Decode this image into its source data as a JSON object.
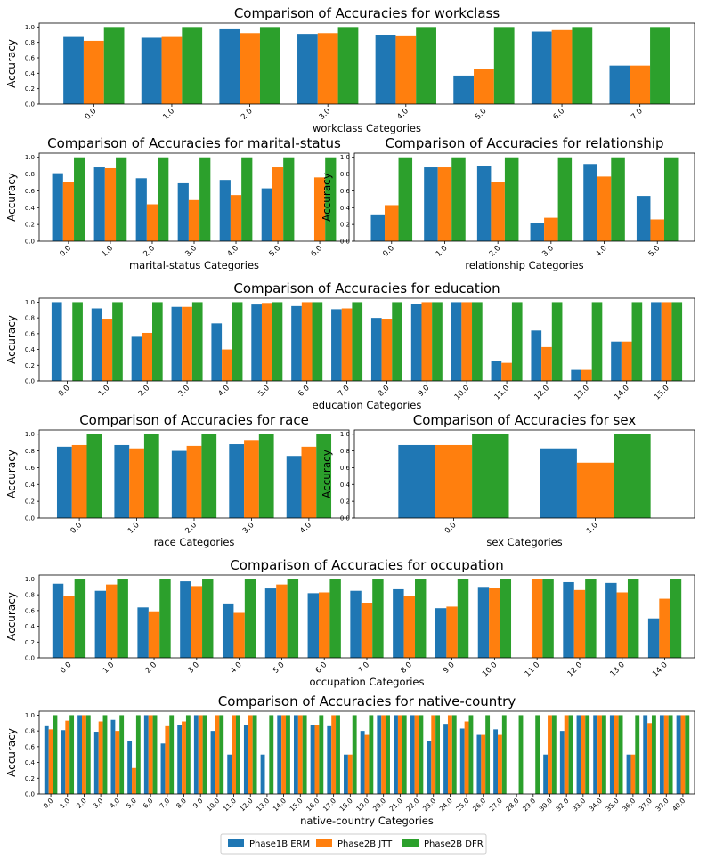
{
  "legend": [
    "Phase1B ERM",
    "Phase2B JTT",
    "Phase2B DFR"
  ],
  "colors": [
    "#1f77b4",
    "#ff7f0e",
    "#2ca02c"
  ],
  "chart_data": [
    {
      "type": "bar",
      "title": "Comparison of Accuracies for workclass",
      "xlabel": "workclass Categories",
      "ylabel": "Accuracy",
      "ylim": [
        0,
        1.05
      ],
      "yticks": [
        "0.0",
        "0.2",
        "0.4",
        "0.6",
        "0.8",
        "1.0"
      ],
      "categories": [
        "0.0",
        "1.0",
        "2.0",
        "3.0",
        "4.0",
        "5.0",
        "6.0",
        "7.0"
      ],
      "series": [
        {
          "name": "Phase1B ERM",
          "values": [
            0.87,
            0.86,
            0.97,
            0.91,
            0.9,
            0.37,
            0.94,
            0.5
          ]
        },
        {
          "name": "Phase2B JTT",
          "values": [
            0.82,
            0.87,
            0.92,
            0.92,
            0.89,
            0.45,
            0.96,
            0.5
          ]
        },
        {
          "name": "Phase2B DFR",
          "values": [
            1.0,
            1.0,
            1.0,
            1.0,
            1.0,
            1.0,
            1.0,
            1.0
          ]
        }
      ]
    },
    {
      "type": "bar",
      "title": "Comparison of Accuracies for marital-status",
      "xlabel": "marital-status Categories",
      "ylabel": "Accuracy",
      "ylim": [
        0,
        1.05
      ],
      "yticks": [
        "0.0",
        "0.2",
        "0.4",
        "0.6",
        "0.8",
        "1.0"
      ],
      "categories": [
        "0.0",
        "1.0",
        "2.0",
        "3.0",
        "4.0",
        "5.0",
        "6.0"
      ],
      "series": [
        {
          "name": "Phase1B ERM",
          "values": [
            0.81,
            0.88,
            0.75,
            0.69,
            0.73,
            0.63,
            0.0
          ]
        },
        {
          "name": "Phase2B JTT",
          "values": [
            0.7,
            0.87,
            0.44,
            0.49,
            0.55,
            0.88,
            0.76
          ]
        },
        {
          "name": "Phase2B DFR",
          "values": [
            1.0,
            1.0,
            1.0,
            1.0,
            1.0,
            1.0,
            1.0
          ]
        }
      ]
    },
    {
      "type": "bar",
      "title": "Comparison of Accuracies for relationship",
      "xlabel": "relationship Categories",
      "ylabel": "Accuracy",
      "ylim": [
        0,
        1.05
      ],
      "yticks": [
        "0.0",
        "0.2",
        "0.4",
        "0.6",
        "0.8",
        "1.0"
      ],
      "categories": [
        "0.0",
        "1.0",
        "2.0",
        "3.0",
        "4.0",
        "5.0"
      ],
      "series": [
        {
          "name": "Phase1B ERM",
          "values": [
            0.32,
            0.88,
            0.9,
            0.22,
            0.92,
            0.54
          ]
        },
        {
          "name": "Phase2B JTT",
          "values": [
            0.43,
            0.88,
            0.7,
            0.28,
            0.77,
            0.26
          ]
        },
        {
          "name": "Phase2B DFR",
          "values": [
            1.0,
            1.0,
            1.0,
            1.0,
            1.0,
            1.0
          ]
        }
      ]
    },
    {
      "type": "bar",
      "title": "Comparison of Accuracies for education",
      "xlabel": "education Categories",
      "ylabel": "Accuracy",
      "ylim": [
        0,
        1.05
      ],
      "yticks": [
        "0.0",
        "0.2",
        "0.4",
        "0.6",
        "0.8",
        "1.0"
      ],
      "categories": [
        "0.0",
        "1.0",
        "2.0",
        "3.0",
        "4.0",
        "5.0",
        "6.0",
        "7.0",
        "8.0",
        "9.0",
        "10.0",
        "11.0",
        "12.0",
        "13.0",
        "14.0",
        "15.0"
      ],
      "series": [
        {
          "name": "Phase1B ERM",
          "values": [
            1.0,
            0.92,
            0.56,
            0.94,
            0.73,
            0.97,
            0.95,
            0.91,
            0.8,
            0.98,
            1.0,
            0.25,
            0.64,
            0.14,
            0.5,
            1.0
          ]
        },
        {
          "name": "Phase2B JTT",
          "values": [
            0.0,
            0.79,
            0.61,
            0.94,
            0.4,
            0.99,
            1.0,
            0.92,
            0.79,
            1.0,
            1.0,
            0.23,
            0.43,
            0.14,
            0.5,
            1.0
          ]
        },
        {
          "name": "Phase2B DFR",
          "values": [
            1.0,
            1.0,
            1.0,
            1.0,
            1.0,
            1.0,
            1.0,
            1.0,
            1.0,
            1.0,
            1.0,
            1.0,
            1.0,
            1.0,
            1.0,
            1.0
          ]
        }
      ]
    },
    {
      "type": "bar",
      "title": "Comparison of Accuracies for race",
      "xlabel": "race Categories",
      "ylabel": "Accuracy",
      "ylim": [
        0,
        1.05
      ],
      "yticks": [
        "0.0",
        "0.2",
        "0.4",
        "0.6",
        "0.8",
        "1.0"
      ],
      "categories": [
        "0.0",
        "1.0",
        "2.0",
        "3.0",
        "4.0"
      ],
      "series": [
        {
          "name": "Phase1B ERM",
          "values": [
            0.85,
            0.87,
            0.8,
            0.88,
            0.74
          ]
        },
        {
          "name": "Phase2B JTT",
          "values": [
            0.87,
            0.83,
            0.86,
            0.93,
            0.85
          ]
        },
        {
          "name": "Phase2B DFR",
          "values": [
            1.0,
            1.0,
            1.0,
            1.0,
            1.0
          ]
        }
      ]
    },
    {
      "type": "bar",
      "title": "Comparison of Accuracies for sex",
      "xlabel": "sex Categories",
      "ylabel": "Accuracy",
      "ylim": [
        0,
        1.05
      ],
      "yticks": [
        "0.0",
        "0.2",
        "0.4",
        "0.6",
        "0.8",
        "1.0"
      ],
      "categories": [
        "0.0",
        "1.0"
      ],
      "series": [
        {
          "name": "Phase1B ERM",
          "values": [
            0.87,
            0.83
          ]
        },
        {
          "name": "Phase2B JTT",
          "values": [
            0.87,
            0.66
          ]
        },
        {
          "name": "Phase2B DFR",
          "values": [
            1.0,
            1.0
          ]
        }
      ]
    },
    {
      "type": "bar",
      "title": "Comparison of Accuracies for occupation",
      "xlabel": "occupation Categories",
      "ylabel": "Accuracy",
      "ylim": [
        0,
        1.05
      ],
      "yticks": [
        "0.0",
        "0.2",
        "0.4",
        "0.6",
        "0.8",
        "1.0"
      ],
      "categories": [
        "0.0",
        "1.0",
        "2.0",
        "3.0",
        "4.0",
        "5.0",
        "6.0",
        "7.0",
        "8.0",
        "9.0",
        "10.0",
        "11.0",
        "12.0",
        "13.0",
        "14.0"
      ],
      "series": [
        {
          "name": "Phase1B ERM",
          "values": [
            0.94,
            0.85,
            0.64,
            0.97,
            0.69,
            0.88,
            0.82,
            0.85,
            0.87,
            0.63,
            0.9,
            0.0,
            0.96,
            0.95,
            0.5
          ]
        },
        {
          "name": "Phase2B JTT",
          "values": [
            0.78,
            0.93,
            0.59,
            0.91,
            0.57,
            0.93,
            0.83,
            0.7,
            0.78,
            0.65,
            0.89,
            1.0,
            0.86,
            0.83,
            0.75
          ]
        },
        {
          "name": "Phase2B DFR",
          "values": [
            1.0,
            1.0,
            1.0,
            1.0,
            1.0,
            1.0,
            1.0,
            1.0,
            1.0,
            1.0,
            1.0,
            1.0,
            1.0,
            1.0,
            1.0
          ]
        }
      ]
    },
    {
      "type": "bar",
      "title": "Comparison of Accuracies for native-country",
      "xlabel": "native-country Categories",
      "ylabel": "Accuracy",
      "ylim": [
        0,
        1.05
      ],
      "yticks": [
        "0.0",
        "0.2",
        "0.4",
        "0.6",
        "0.8",
        "1.0"
      ],
      "categories": [
        "0.0",
        "1.0",
        "2.0",
        "3.0",
        "4.0",
        "5.0",
        "6.0",
        "7.0",
        "8.0",
        "9.0",
        "10.0",
        "11.0",
        "12.0",
        "13.0",
        "14.0",
        "15.0",
        "16.0",
        "17.0",
        "18.0",
        "19.0",
        "20.0",
        "21.0",
        "22.0",
        "23.0",
        "24.0",
        "25.0",
        "26.0",
        "27.0",
        "28.0",
        "29.0",
        "30.0",
        "32.0",
        "33.0",
        "34.0",
        "35.0",
        "36.0",
        "37.0",
        "39.0",
        "40.0"
      ],
      "series": [
        {
          "name": "Phase1B ERM",
          "values": [
            0.86,
            0.81,
            1.0,
            0.79,
            0.94,
            0.67,
            1.0,
            0.64,
            0.88,
            1.0,
            0.8,
            0.5,
            0.88,
            0.5,
            1.0,
            1.0,
            0.88,
            0.86,
            0.5,
            0.8,
            1.0,
            1.0,
            1.0,
            0.67,
            0.89,
            0.83,
            0.75,
            0.82,
            0.0,
            0.0,
            0.5,
            0.8,
            1.0,
            1.0,
            1.0,
            0.5,
            1.0,
            1.0,
            1.0
          ]
        },
        {
          "name": "Phase2B JTT",
          "values": [
            0.82,
            0.93,
            1.0,
            0.92,
            0.8,
            0.33,
            1.0,
            0.86,
            0.92,
            1.0,
            1.0,
            1.0,
            1.0,
            0.0,
            1.0,
            1.0,
            0.88,
            1.0,
            0.5,
            0.75,
            1.0,
            1.0,
            1.0,
            1.0,
            1.0,
            0.92,
            0.75,
            0.75,
            0.0,
            0.0,
            1.0,
            1.0,
            1.0,
            1.0,
            1.0,
            0.5,
            0.9,
            1.0,
            1.0
          ]
        },
        {
          "name": "Phase2B DFR",
          "values": [
            1.0,
            1.0,
            1.0,
            1.0,
            1.0,
            1.0,
            1.0,
            1.0,
            1.0,
            1.0,
            1.0,
            1.0,
            1.0,
            1.0,
            1.0,
            1.0,
            1.0,
            1.0,
            1.0,
            1.0,
            1.0,
            1.0,
            1.0,
            1.0,
            1.0,
            1.0,
            1.0,
            1.0,
            1.0,
            1.0,
            1.0,
            1.0,
            1.0,
            1.0,
            1.0,
            1.0,
            1.0,
            1.0,
            1.0
          ]
        }
      ]
    }
  ]
}
